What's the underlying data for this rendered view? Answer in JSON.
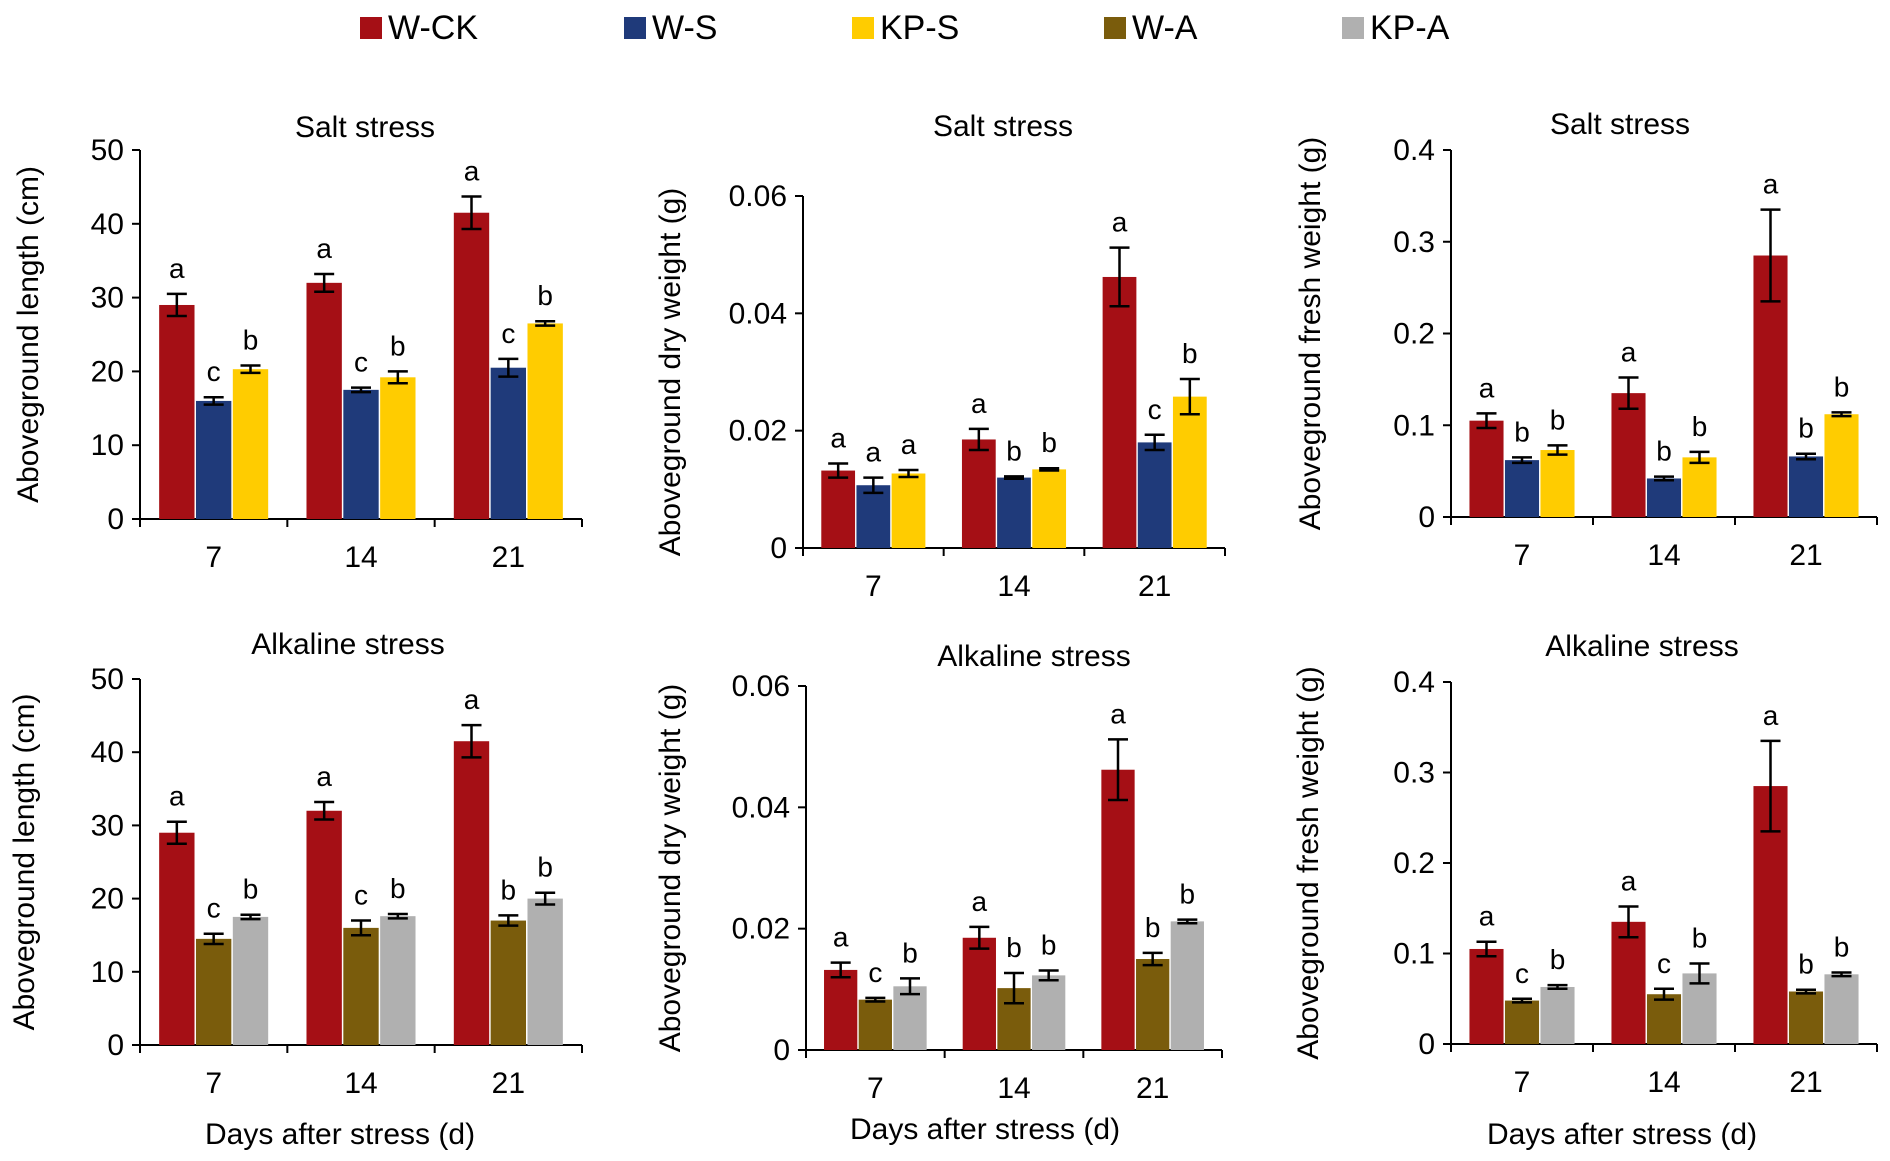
{
  "legend": [
    {
      "key": "W-CK",
      "label": "W-CK",
      "color": "#a50f15"
    },
    {
      "key": "W-S",
      "label": "W-S",
      "color": "#1f3a7a"
    },
    {
      "key": "KP-S",
      "label": "KP-S",
      "color": "#ffcc00"
    },
    {
      "key": "W-A",
      "label": "W-A",
      "color": "#7a5c0c"
    },
    {
      "key": "KP-A",
      "label": "KP-A",
      "color": "#b0b0b0"
    }
  ],
  "x_axis_title": "Days after stress (d)",
  "chart_data": [
    {
      "id": "salt-length",
      "type": "bar",
      "title": "Salt stress",
      "ylabel": "Aboveground length (cm)",
      "xlabel": "",
      "categories": [
        "7",
        "14",
        "21"
      ],
      "ylim": [
        0,
        50
      ],
      "yticks": [
        "0",
        "10",
        "20",
        "30",
        "40",
        "50"
      ],
      "series": [
        {
          "name": "W-CK",
          "color": "#a50f15",
          "values": [
            29,
            32,
            41.5
          ],
          "errors": [
            1.5,
            1.2,
            2.2
          ],
          "letters": [
            "a",
            "a",
            "a"
          ]
        },
        {
          "name": "W-S",
          "color": "#1f3a7a",
          "values": [
            16,
            17.5,
            20.5
          ],
          "errors": [
            0.5,
            0.3,
            1.2
          ],
          "letters": [
            "c",
            "c",
            "c"
          ]
        },
        {
          "name": "KP-S",
          "color": "#ffcc00",
          "values": [
            20.3,
            19.2,
            26.5
          ],
          "errors": [
            0.5,
            0.8,
            0.3
          ],
          "letters": [
            "b",
            "b",
            "b"
          ]
        }
      ]
    },
    {
      "id": "salt-dry",
      "type": "bar",
      "title": "Salt stress",
      "ylabel": "Aboveground dry weight (g)",
      "xlabel": "",
      "categories": [
        "7",
        "14",
        "21"
      ],
      "ylim": [
        0,
        0.06
      ],
      "yticks": [
        "0",
        "0.02",
        "0.04",
        "0.06"
      ],
      "series": [
        {
          "name": "W-CK",
          "color": "#a50f15",
          "values": [
            0.0132,
            0.0185,
            0.0462
          ],
          "errors": [
            0.0012,
            0.0018,
            0.005
          ],
          "letters": [
            "a",
            "a",
            "a"
          ]
        },
        {
          "name": "W-S",
          "color": "#1f3a7a",
          "values": [
            0.0107,
            0.012,
            0.018
          ],
          "errors": [
            0.0013,
            0.0002,
            0.0013
          ],
          "letters": [
            "a",
            "b",
            "c"
          ]
        },
        {
          "name": "KP-S",
          "color": "#ffcc00",
          "values": [
            0.0127,
            0.0134,
            0.0258
          ],
          "errors": [
            0.0006,
            0.0002,
            0.003
          ],
          "letters": [
            "a",
            "b",
            "b"
          ]
        }
      ]
    },
    {
      "id": "salt-fresh",
      "type": "bar",
      "title": "Salt stress",
      "ylabel": "Aboveground fresh weight (g)",
      "xlabel": "",
      "categories": [
        "7",
        "14",
        "21"
      ],
      "ylim": [
        0,
        0.4
      ],
      "yticks": [
        "0",
        "0.1",
        "0.2",
        "0.3",
        "0.4"
      ],
      "series": [
        {
          "name": "W-CK",
          "color": "#a50f15",
          "values": [
            0.105,
            0.135,
            0.285
          ],
          "errors": [
            0.008,
            0.017,
            0.05
          ],
          "letters": [
            "a",
            "a",
            "a"
          ]
        },
        {
          "name": "W-S",
          "color": "#1f3a7a",
          "values": [
            0.062,
            0.042,
            0.066
          ],
          "errors": [
            0.003,
            0.002,
            0.003
          ],
          "letters": [
            "b",
            "b",
            "b"
          ]
        },
        {
          "name": "KP-S",
          "color": "#ffcc00",
          "values": [
            0.073,
            0.065,
            0.112
          ],
          "errors": [
            0.005,
            0.006,
            0.002
          ],
          "letters": [
            "b",
            "b",
            "b"
          ]
        }
      ]
    },
    {
      "id": "alk-length",
      "type": "bar",
      "title": "Alkaline stress",
      "ylabel": "Aboveground length (cm)",
      "xlabel": "Days after stress (d)",
      "categories": [
        "7",
        "14",
        "21"
      ],
      "ylim": [
        0,
        50
      ],
      "yticks": [
        "0",
        "10",
        "20",
        "30",
        "40",
        "50"
      ],
      "series": [
        {
          "name": "W-CK",
          "color": "#a50f15",
          "values": [
            29,
            32,
            41.5
          ],
          "errors": [
            1.5,
            1.2,
            2.2
          ],
          "letters": [
            "a",
            "a",
            "a"
          ]
        },
        {
          "name": "W-A",
          "color": "#7a5c0c",
          "values": [
            14.5,
            16,
            17
          ],
          "errors": [
            0.7,
            1,
            0.7
          ],
          "letters": [
            "c",
            "c",
            "b"
          ]
        },
        {
          "name": "KP-A",
          "color": "#b0b0b0",
          "values": [
            17.5,
            17.6,
            20
          ],
          "errors": [
            0.3,
            0.3,
            0.8
          ],
          "letters": [
            "b",
            "b",
            "b"
          ]
        }
      ]
    },
    {
      "id": "alk-dry",
      "type": "bar",
      "title": "Alkaline stress",
      "ylabel": "Aboveground dry weight (g)",
      "xlabel": "Days after stress (d)",
      "categories": [
        "7",
        "14",
        "21"
      ],
      "ylim": [
        0,
        0.06
      ],
      "yticks": [
        "0",
        "0.02",
        "0.04",
        "0.06"
      ],
      "series": [
        {
          "name": "W-CK",
          "color": "#a50f15",
          "values": [
            0.0132,
            0.0185,
            0.0462
          ],
          "errors": [
            0.0012,
            0.0018,
            0.005
          ],
          "letters": [
            "a",
            "a",
            "a"
          ]
        },
        {
          "name": "W-A",
          "color": "#7a5c0c",
          "values": [
            0.0083,
            0.0102,
            0.015
          ],
          "errors": [
            0.0003,
            0.0025,
            0.001
          ],
          "letters": [
            "c",
            "b",
            "b"
          ]
        },
        {
          "name": "KP-A",
          "color": "#b0b0b0",
          "values": [
            0.0105,
            0.0123,
            0.0212
          ],
          "errors": [
            0.0013,
            0.0008,
            0.0003
          ],
          "letters": [
            "b",
            "b",
            "b"
          ]
        }
      ]
    },
    {
      "id": "alk-fresh",
      "type": "bar",
      "title": "Alkaline stress",
      "ylabel": "Aboveground fresh weight (g)",
      "xlabel": "Days after stress (d)",
      "categories": [
        "7",
        "14",
        "21"
      ],
      "ylim": [
        0,
        0.4
      ],
      "yticks": [
        "0",
        "0.1",
        "0.2",
        "0.3",
        "0.4"
      ],
      "series": [
        {
          "name": "W-CK",
          "color": "#a50f15",
          "values": [
            0.105,
            0.135,
            0.285
          ],
          "errors": [
            0.008,
            0.017,
            0.05
          ],
          "letters": [
            "a",
            "a",
            "a"
          ]
        },
        {
          "name": "W-A",
          "color": "#7a5c0c",
          "values": [
            0.048,
            0.055,
            0.058
          ],
          "errors": [
            0.002,
            0.006,
            0.002
          ],
          "letters": [
            "c",
            "c",
            "b"
          ]
        },
        {
          "name": "KP-A",
          "color": "#b0b0b0",
          "values": [
            0.063,
            0.078,
            0.077
          ],
          "errors": [
            0.002,
            0.011,
            0.002
          ],
          "letters": [
            "b",
            "b",
            "b"
          ]
        }
      ]
    }
  ]
}
